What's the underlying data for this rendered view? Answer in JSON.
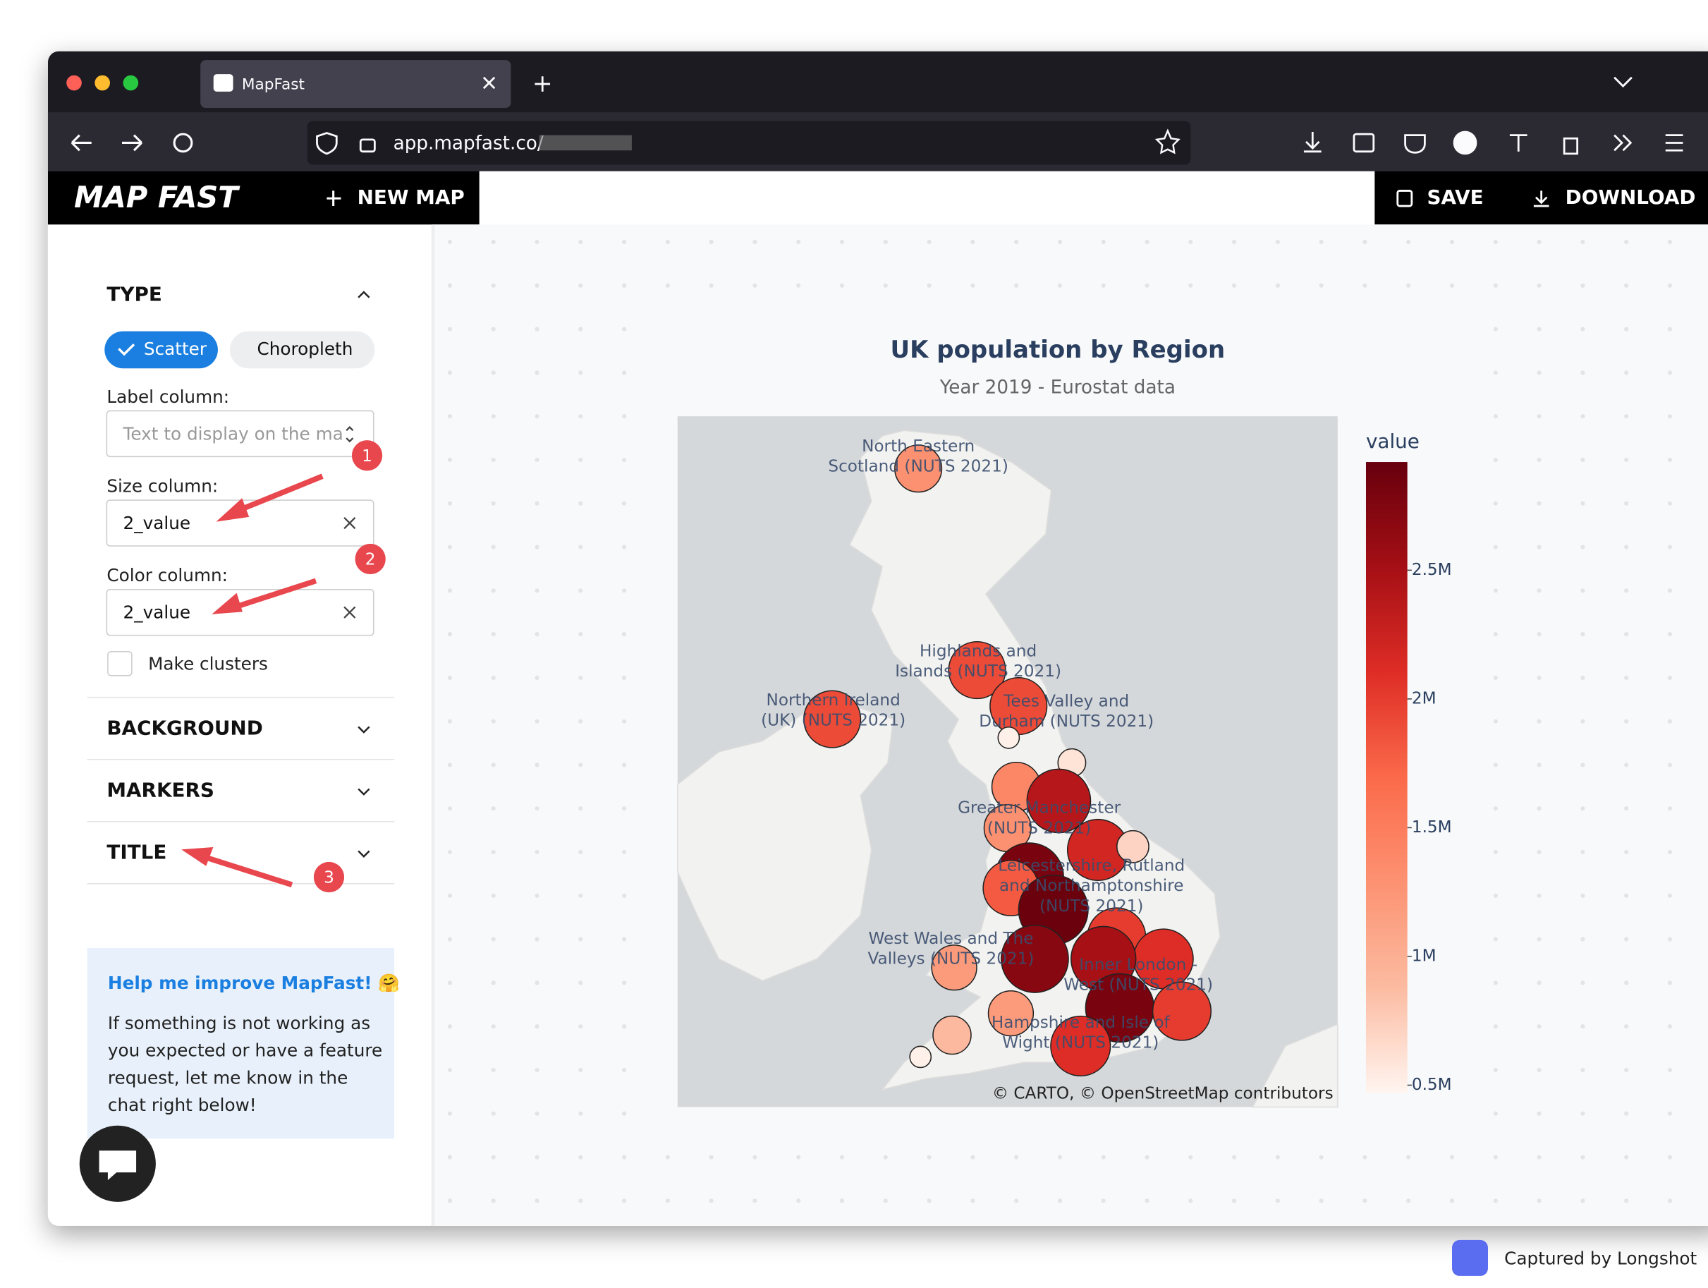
{
  "browser": {
    "tab_title": "MapFast",
    "url": "app.mapfast.co/"
  },
  "app_header": {
    "logo": "MAP FAST",
    "new_map": "NEW MAP",
    "save": "SAVE",
    "download": "DOWNLOAD"
  },
  "sidebar": {
    "type_title": "TYPE",
    "type_options": [
      "Scatter",
      "Choropleth"
    ],
    "label_column": "Label column:",
    "label_placeholder": "Text to display on the ma",
    "size_column": "Size column:",
    "size_value": "2_value",
    "color_column": "Color column:",
    "color_value": "2_value",
    "clusters": "Make clusters",
    "sections": [
      "BACKGROUND",
      "MARKERS",
      "TITLE"
    ],
    "help_title": "Help me improve MapFast! 🤗",
    "help_lines": [
      "If something is not working as",
      "you expected or have a feature",
      "request, let me know in the",
      "chat right below!"
    ]
  },
  "annotations": [
    "1",
    "2",
    "3"
  ],
  "chart_data": {
    "type": "scatter_map",
    "title": "UK population by Region",
    "subtitle": "Year 2019 - Eurostat data",
    "colorbar_title": "value",
    "colorbar_lim": [
      470000,
      2920000
    ],
    "colorbar_ticks": [
      {
        "value": 500000,
        "label": "0.5M"
      },
      {
        "value": 1000000,
        "label": "1M"
      },
      {
        "value": 1500000,
        "label": "1.5M"
      },
      {
        "value": 2000000,
        "label": "2M"
      },
      {
        "value": 2500000,
        "label": "2.5M"
      }
    ],
    "colorscale": [
      "#fff5f0",
      "#fcbba1",
      "#fc9272",
      "#fb6a4a",
      "#de2d26",
      "#a50f15",
      "#67000d"
    ],
    "values": [
      1300000,
      1900000,
      1900000,
      1900000,
      500000,
      600000,
      1400000,
      2400000,
      1300000,
      2200000,
      700000,
      2800000,
      1800000,
      2900000,
      2000000,
      2100000,
      2500000,
      2700000,
      1200000,
      2800000,
      2000000,
      1200000,
      2100000,
      900000,
      500000
    ],
    "region_labels": [
      [
        "North Eastern",
        "Scotland (NUTS 2021)"
      ],
      [
        "Highlands and",
        "Islands (NUTS 2021)"
      ],
      [
        "Northern Ireland",
        "(UK) (NUTS 2021)"
      ],
      [
        "Tees Valley and",
        "Durham (NUTS 2021)"
      ],
      [
        "Greater Manchester",
        "(NUTS 2021)"
      ],
      [
        "Leicestershire, Rutland",
        "and Northamptonshire",
        "(NUTS 2021)"
      ],
      [
        "West Wales and The",
        "Valleys (NUTS 2021)"
      ],
      [
        "Inner London -",
        "West (NUTS 2021)"
      ],
      [
        "Hampshire and Isle of",
        "Wight (NUTS 2021)"
      ]
    ],
    "attribution": "© CARTO, © OpenStreetMap contributors"
  },
  "footer": "Captured by Longshot"
}
